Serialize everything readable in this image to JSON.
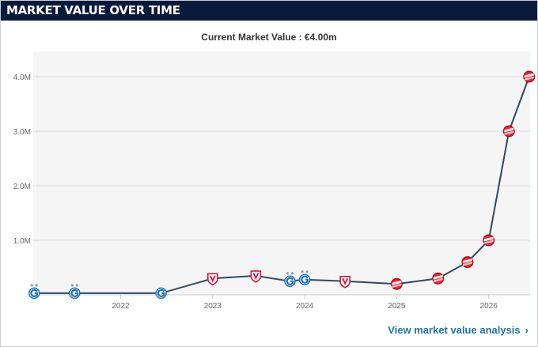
{
  "header": {
    "title": "MARKET VALUE OVER TIME"
  },
  "subtitle": "Current Market Value : €4.00m",
  "link": {
    "label": "View market value analysis",
    "chevron": "›"
  },
  "colors": {
    "header_bg": "#091a3b",
    "line": "#2e4861",
    "link": "#1d75a3",
    "grid": "#d9d9d9",
    "plot_bg": "#f5f5f5"
  },
  "chart_data": {
    "type": "line",
    "title": "",
    "xlabel": "",
    "ylabel": "",
    "xlim": [
      2021.05,
      2026.45
    ],
    "ylim": [
      0,
      4.0
    ],
    "grid": "horizontal",
    "y_ticks": [
      {
        "value": 1,
        "label": "1.0M"
      },
      {
        "value": 2,
        "label": "2.0M"
      },
      {
        "value": 3,
        "label": "3.0M"
      },
      {
        "value": 4,
        "label": "4.0M"
      }
    ],
    "x_ticks": [
      {
        "value": 2022,
        "label": "2022"
      },
      {
        "value": 2023,
        "label": "2023"
      },
      {
        "value": 2024,
        "label": "2024"
      },
      {
        "value": 2025,
        "label": "2025"
      },
      {
        "value": 2026,
        "label": "2026"
      }
    ],
    "series": [
      {
        "values_unit": "€ million",
        "points": [
          {
            "x": 2021.06,
            "y": 0.03,
            "club": "blue-g",
            "stars": 2
          },
          {
            "x": 2021.5,
            "y": 0.03,
            "club": "blue-g",
            "stars": 2
          },
          {
            "x": 2022.44,
            "y": 0.03,
            "club": "blue-g",
            "stars": 0
          },
          {
            "x": 2023.0,
            "y": 0.3,
            "club": "red-v",
            "stars": 0
          },
          {
            "x": 2023.47,
            "y": 0.35,
            "club": "red-v",
            "stars": 0
          },
          {
            "x": 2023.84,
            "y": 0.25,
            "club": "blue-g",
            "stars": 2
          },
          {
            "x": 2024.0,
            "y": 0.28,
            "club": "blue-g",
            "stars": 2
          },
          {
            "x": 2024.44,
            "y": 0.25,
            "club": "red-v",
            "stars": 0
          },
          {
            "x": 2025.0,
            "y": 0.2,
            "club": "red-shield",
            "stars": 0
          },
          {
            "x": 2025.45,
            "y": 0.3,
            "club": "red-shield",
            "stars": 0
          },
          {
            "x": 2025.77,
            "y": 0.6,
            "club": "red-shield",
            "stars": 0
          },
          {
            "x": 2026.0,
            "y": 1.0,
            "club": "red-shield",
            "stars": 0
          },
          {
            "x": 2026.22,
            "y": 3.0,
            "club": "red-shield",
            "stars": 0
          },
          {
            "x": 2026.44,
            "y": 4.0,
            "club": "red-shield",
            "stars": 0
          }
        ]
      }
    ]
  }
}
